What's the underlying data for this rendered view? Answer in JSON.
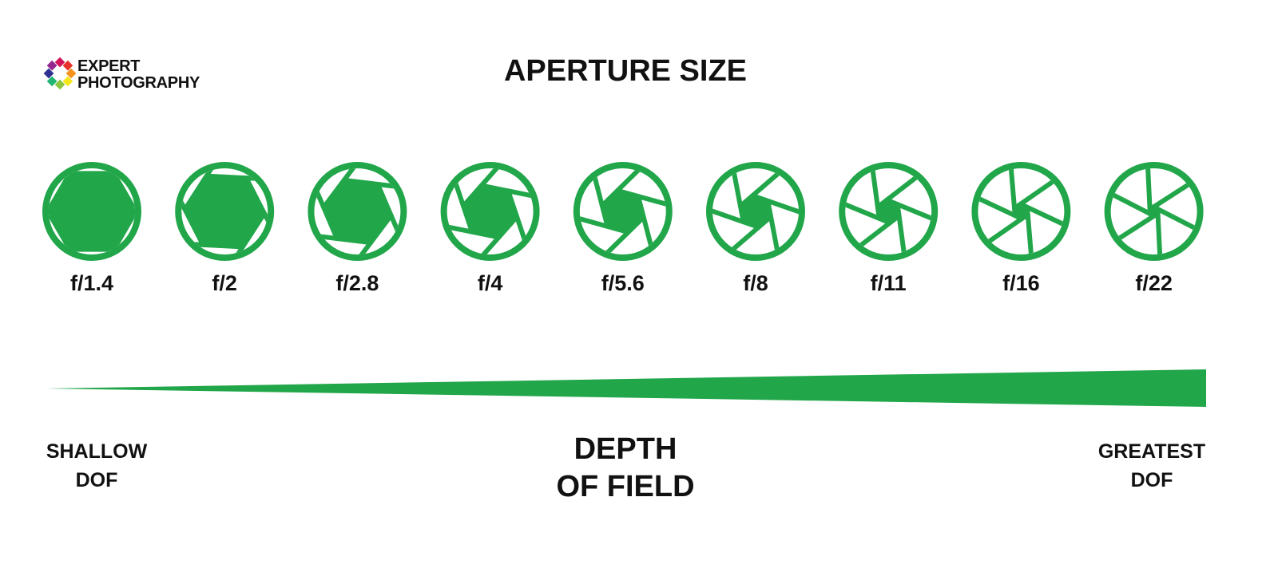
{
  "logo": {
    "line1": "EXPERT",
    "line2": "PHOTOGRAPHY",
    "colors": [
      "#d4145a",
      "#e8312a",
      "#f7931e",
      "#f5e61c",
      "#8cc63f",
      "#22b573",
      "#2e3192",
      "#93278f"
    ]
  },
  "title": "APERTURE SIZE",
  "accent_color": "#22a64a",
  "apertures": [
    {
      "label": "f/1.4",
      "opening": 1.0
    },
    {
      "label": "f/2",
      "opening": 0.9
    },
    {
      "label": "f/2.8",
      "opening": 0.76
    },
    {
      "label": "f/4",
      "opening": 0.6
    },
    {
      "label": "f/5.6",
      "opening": 0.46
    },
    {
      "label": "f/8",
      "opening": 0.33
    },
    {
      "label": "f/11",
      "opening": 0.22
    },
    {
      "label": "f/16",
      "opening": 0.12
    },
    {
      "label": "f/22",
      "opening": 0.05
    }
  ],
  "depth_of_field": {
    "left_label": [
      "SHALLOW",
      "DOF"
    ],
    "center_label": [
      "DEPTH",
      "OF FIELD"
    ],
    "right_label": [
      "GREATEST",
      "DOF"
    ]
  }
}
